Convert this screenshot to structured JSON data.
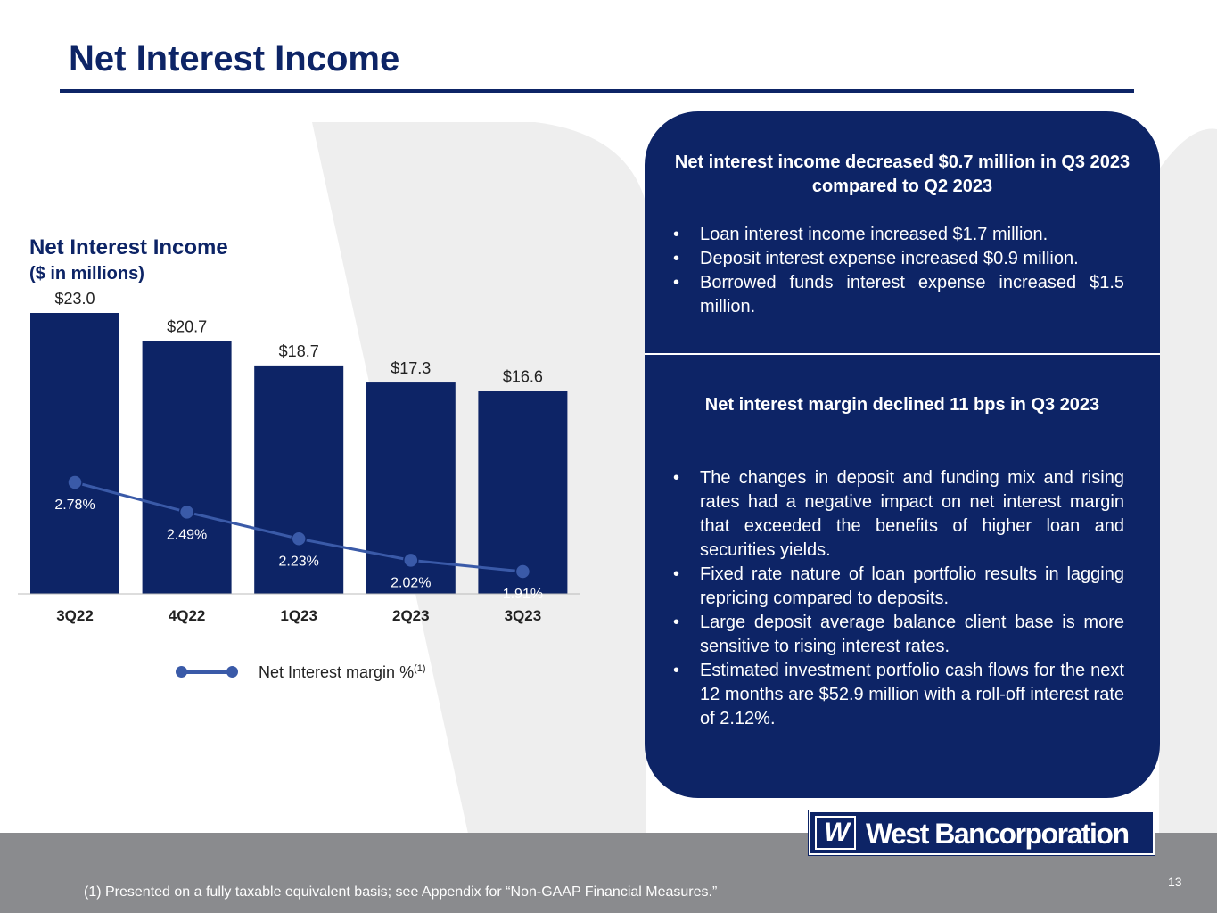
{
  "page": {
    "title": "Net Interest Income",
    "page_number": "13",
    "footnote": "(1) Presented on a fully taxable equivalent basis; see Appendix for “Non-GAAP Financial Measures.”",
    "logo_mark": "W",
    "logo_text": "West Bancorporation",
    "colors": {
      "navy": "#0d2466",
      "line": "#3a5aa8",
      "gray_band": "#8a8b8e",
      "watermark": "#eeeeee"
    }
  },
  "chart_data": {
    "type": "bar",
    "title": "Net Interest Income",
    "subtitle": "($ in millions)",
    "categories": [
      "3Q22",
      "4Q22",
      "1Q23",
      "2Q23",
      "3Q23"
    ],
    "values": [
      23.0,
      20.7,
      18.7,
      17.3,
      16.6
    ],
    "value_labels": [
      "$23.0",
      "$20.7",
      "$18.7",
      "$17.3",
      "$16.6"
    ],
    "ylim": [
      0,
      23.0
    ],
    "grid": false,
    "line_series": {
      "name": "Net Interest margin %",
      "name_superscript": "(1)",
      "values": [
        2.78,
        2.49,
        2.23,
        2.02,
        1.91
      ],
      "labels": [
        "2.78%",
        "2.49%",
        "2.23%",
        "2.02%",
        "1.91%"
      ]
    },
    "legend_position": "bottom"
  },
  "panel": {
    "section1": {
      "heading": "Net interest income decreased $0.7 million in Q3 2023 compared to Q2 2023",
      "bullets": [
        "Loan interest income increased $1.7 million.",
        "Deposit interest expense increased $0.9 million.",
        "Borrowed funds interest expense increased $1.5 million."
      ]
    },
    "section2": {
      "heading": "Net interest margin declined 11 bps in Q3 2023",
      "bullets": [
        "The changes in deposit and funding mix and rising rates had a negative impact on net interest margin that exceeded the benefits of higher loan and securities yields.",
        "Fixed rate nature of loan portfolio results in lagging repricing compared to deposits.",
        "Large deposit average balance client base is more sensitive to rising interest rates.",
        "Estimated investment portfolio cash flows for the next 12 months are $52.9 million with a roll-off interest rate of 2.12%."
      ]
    }
  }
}
